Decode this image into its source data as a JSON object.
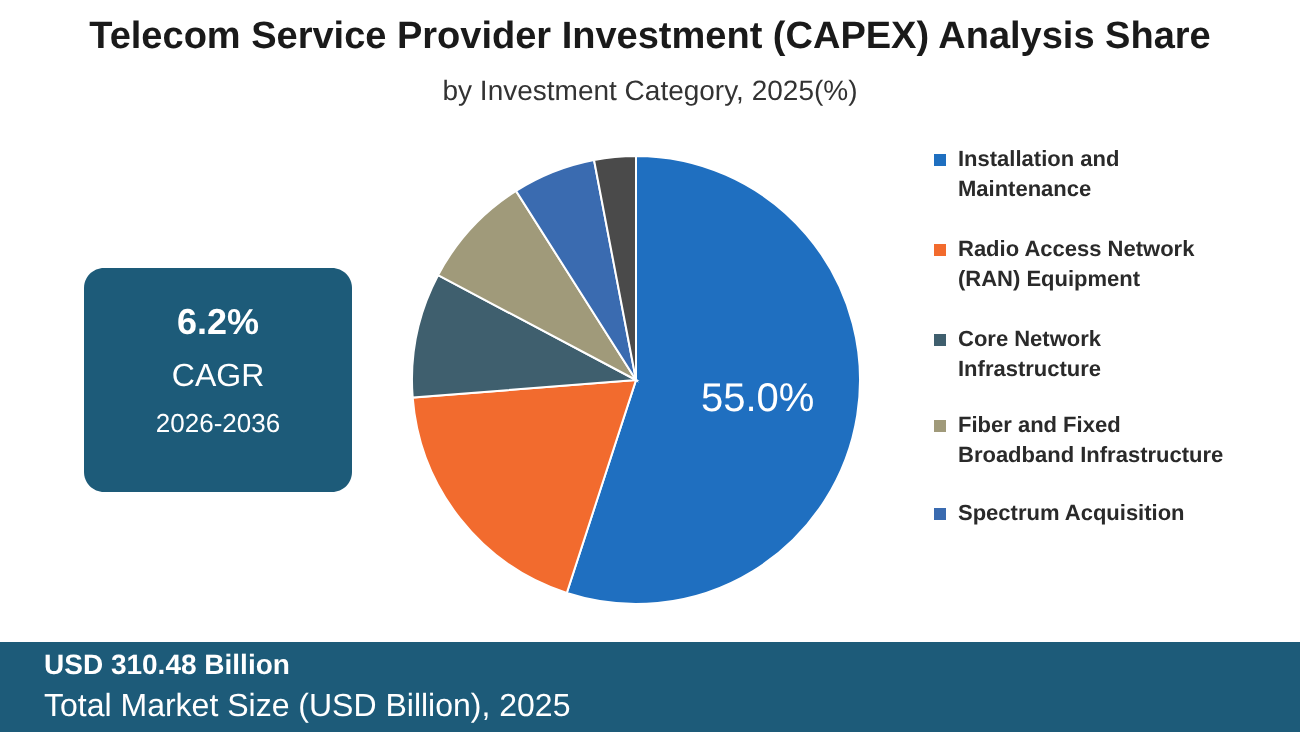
{
  "chart_data": {
    "type": "pie",
    "title": "Telecom Service Provider Investment (CAPEX) Analysis Share",
    "subtitle": "by Investment Category, 2025(%)",
    "categories": [
      "Installation and Maintenance",
      "Radio Access Network (RAN) Equipment",
      "Core Network Infrastructure",
      "Fiber and Fixed Broadband Infrastructure",
      "Spectrum Acquisition",
      null
    ],
    "values": [
      55.0,
      18.75,
      9,
      8.25,
      6,
      3
    ],
    "colors": [
      "#1f6fc0",
      "#f26b2e",
      "#3f5f6e",
      "#a09a7a",
      "#3a6bb0",
      "#4a4a4a"
    ],
    "value_labels": [
      "55.0%",
      null,
      null,
      null,
      null,
      null
    ],
    "legend": "right",
    "annotations": [
      "6.2%",
      "CAGR",
      "2026-2036",
      "USD 310.48 Billion",
      "Total Market Size (USD Billion), 2025"
    ]
  }
}
